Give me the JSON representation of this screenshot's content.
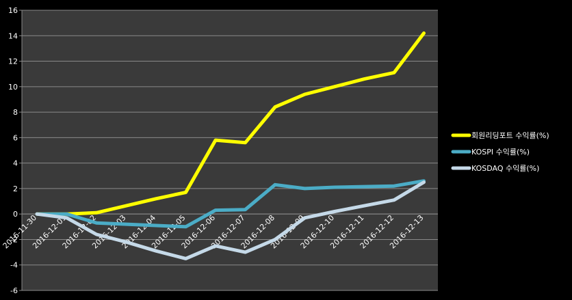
{
  "chart_data": {
    "type": "line",
    "title": "",
    "xlabel": "",
    "ylabel": "",
    "ylim": [
      -6,
      16
    ],
    "yticks": [
      -6,
      -4,
      -2,
      0,
      2,
      4,
      6,
      8,
      10,
      12,
      14,
      16
    ],
    "grid": true,
    "legend_position": "right",
    "categories": [
      "2016-11-30",
      "2016-12-01",
      "2016-12-02",
      "2016-12-03",
      "2016-12-04",
      "2016-12-05",
      "2016-12-06",
      "2016-12-07",
      "2016-12-08",
      "2016-12-09",
      "2016-12-10",
      "2016-12-11",
      "2016-12-12",
      "2016-12-13"
    ],
    "series": [
      {
        "name": "회원리딩포트 수익률(%)",
        "color": "#ffff00",
        "values": [
          0,
          0,
          0.1,
          0.65,
          1.2,
          1.7,
          5.8,
          5.6,
          8.4,
          9.4,
          10.0,
          10.6,
          11.1,
          14.2
        ]
      },
      {
        "name": "KOSPI 수익률(%)",
        "color": "#4bacc6",
        "values": [
          0,
          0,
          -0.7,
          -0.8,
          -0.9,
          -1.0,
          0.3,
          0.35,
          2.3,
          2.0,
          2.1,
          2.15,
          2.2,
          2.6
        ]
      },
      {
        "name": "KOSDAQ 수익률(%)",
        "color": "#c5d9e8",
        "values": [
          0,
          -0.3,
          -1.6,
          -2.2,
          -2.9,
          -3.5,
          -2.5,
          -3.0,
          -2.0,
          -0.3,
          0.2,
          0.65,
          1.1,
          2.5
        ]
      }
    ]
  }
}
